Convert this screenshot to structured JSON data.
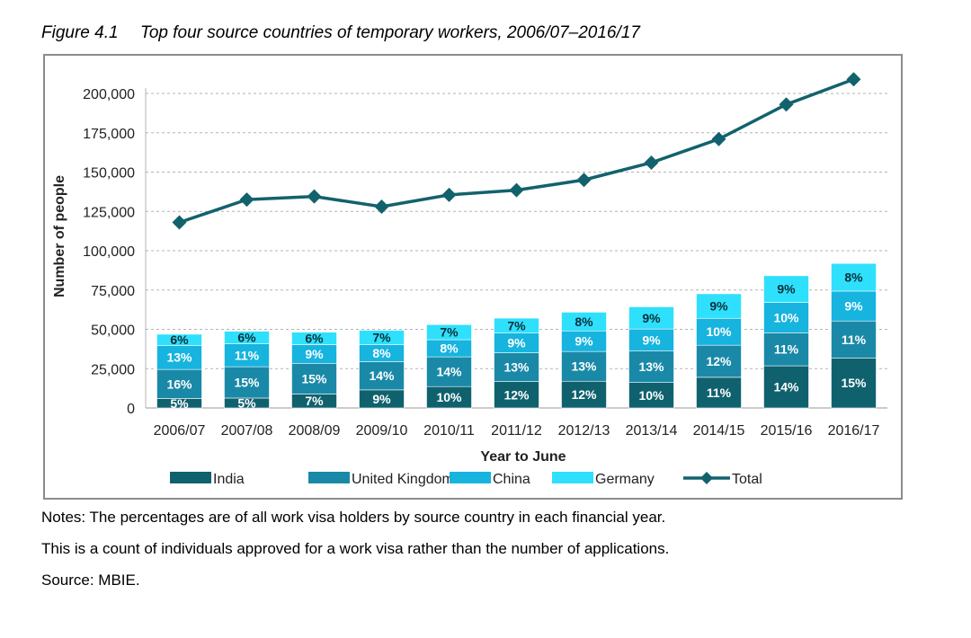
{
  "caption": {
    "figure": "Figure 4.1",
    "title": "Top four source countries of temporary workers, 2006/07–2016/17"
  },
  "notes": [
    "Notes: The percentages are of all work visa holders by source country in each financial year.",
    "This is a count of individuals approved for a work visa rather than the number of applications.",
    "Source: MBIE."
  ],
  "chart_data": {
    "type": "bar",
    "stacked": true,
    "categories": [
      "2006/07",
      "2007/08",
      "2008/09",
      "2009/10",
      "2010/11",
      "2011/12",
      "2012/13",
      "2013/14",
      "2014/15",
      "2015/16",
      "2016/17"
    ],
    "series": [
      {
        "name": "India",
        "color": "#10616e",
        "values": [
          6000,
          6300,
          8900,
          11500,
          13600,
          16800,
          17000,
          16200,
          19500,
          26800,
          31800
        ],
        "labels": [
          "5%",
          "5%",
          "7%",
          "9%",
          "10%",
          "12%",
          "12%",
          "10%",
          "11%",
          "14%",
          "15%"
        ]
      },
      {
        "name": "United Kingdom",
        "color": "#1a89a8",
        "values": [
          18500,
          19900,
          19500,
          18000,
          18900,
          18300,
          18900,
          20000,
          20400,
          21000,
          23500
        ],
        "labels": [
          "16%",
          "15%",
          "15%",
          "14%",
          "14%",
          "13%",
          "13%",
          "13%",
          "12%",
          "11%",
          "11%"
        ]
      },
      {
        "name": "China",
        "color": "#16b4df",
        "values": [
          15300,
          14600,
          11900,
          10700,
          10900,
          12500,
          13100,
          14000,
          17100,
          19300,
          19000
        ],
        "labels": [
          "13%",
          "11%",
          "9%",
          "8%",
          "8%",
          "9%",
          "9%",
          "9%",
          "10%",
          "10%",
          "9%"
        ]
      },
      {
        "name": "Germany",
        "color": "#2ee0fc",
        "values": [
          7100,
          8000,
          7900,
          9200,
          9600,
          9500,
          11900,
          14100,
          15600,
          17000,
          17600
        ],
        "labels": [
          "6%",
          "6%",
          "6%",
          "7%",
          "7%",
          "7%",
          "8%",
          "9%",
          "9%",
          "9%",
          "8%"
        ]
      }
    ],
    "line": {
      "name": "Total",
      "color": "#12626d",
      "values": [
        118000,
        132500,
        134500,
        128000,
        135500,
        138500,
        145000,
        156000,
        171000,
        193000,
        209000
      ]
    },
    "xlabel": "Year to June",
    "ylabel": "Number of people",
    "ylim": [
      0,
      200000
    ],
    "yticks": [
      0,
      25000,
      50000,
      75000,
      100000,
      125000,
      150000,
      175000,
      200000
    ],
    "ytick_labels": [
      "0",
      "25,000",
      "50,000",
      "75,000",
      "100,000",
      "125,000",
      "150,000",
      "175,000",
      "200,000"
    ],
    "legend_position": "bottom",
    "grid": "horizontal dashed"
  }
}
